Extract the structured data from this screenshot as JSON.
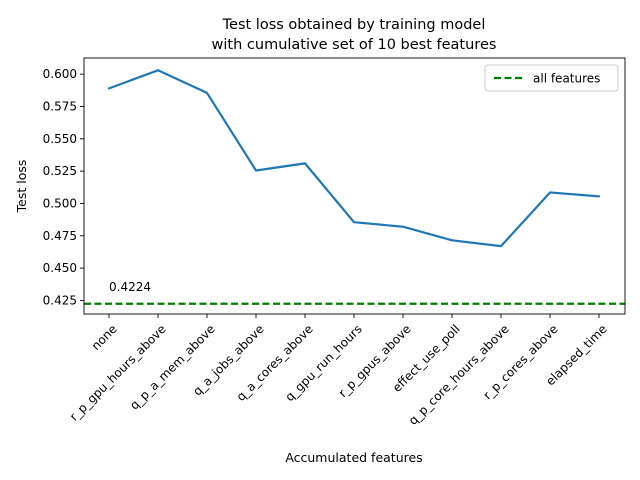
{
  "chart_data": {
    "type": "line",
    "title": "Test loss obtained by training model",
    "subtitle": "with cumulative set of 10 best features",
    "xlabel": "Accumulated features",
    "ylabel": "Test loss",
    "categories": [
      "none",
      "r_p_gpu_hours_above",
      "q_p_a_mem_above",
      "q_a_jobs_above",
      "q_a_cores_above",
      "q_gpu_run_hours",
      "r_p_gpus_above",
      "effect_use_poll",
      "q_p_core_hours_above",
      "r_p_cores_above",
      "elapsed_time"
    ],
    "series": [
      {
        "values": [
          0.589,
          0.603,
          0.5855,
          0.5255,
          0.531,
          0.4855,
          0.482,
          0.4715,
          0.467,
          0.5085,
          0.5055
        ],
        "color": "#1f77b4"
      }
    ],
    "reference_line": {
      "name": "all features",
      "value": 0.4224,
      "label": "0.4224",
      "color": "#008000",
      "style": "dashed"
    },
    "yticks": [
      "0.425",
      "0.450",
      "0.475",
      "0.500",
      "0.525",
      "0.550",
      "0.575",
      "0.600"
    ],
    "ylim": [
      0.4145,
      0.6125
    ],
    "grid": false,
    "legend_position": "top-right"
  }
}
